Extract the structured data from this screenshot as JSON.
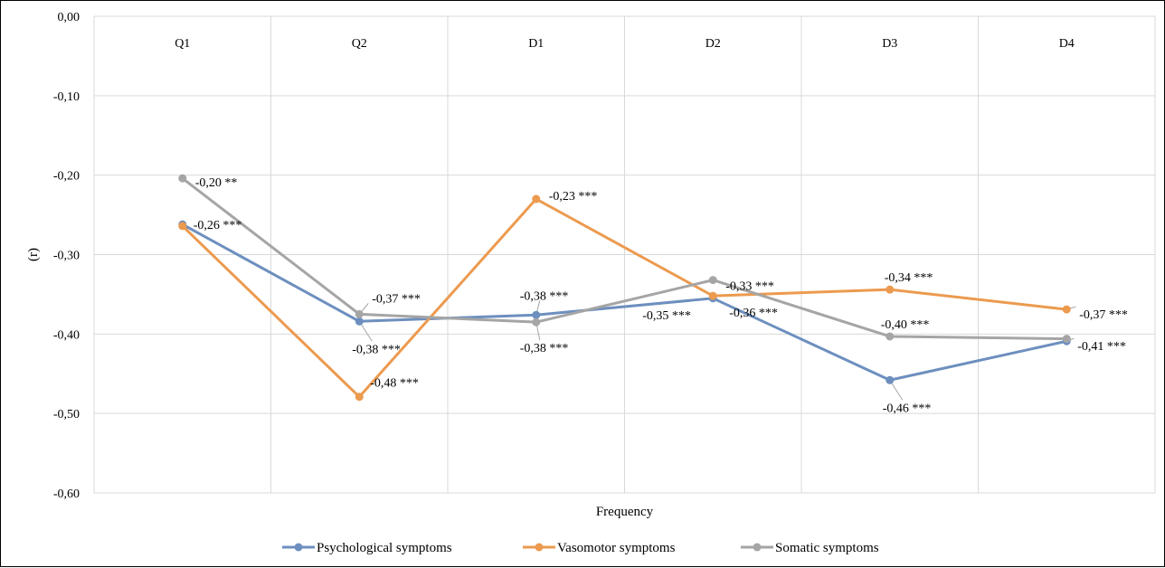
{
  "chart_data": {
    "type": "line",
    "title": "",
    "xlabel": "Frequency",
    "ylabel": "(r)",
    "categories": [
      "Q1",
      "Q2",
      "D1",
      "D2",
      "D3",
      "D4"
    ],
    "ylim": [
      -0.6,
      0.0
    ],
    "yticks": [
      0.0,
      -0.1,
      -0.2,
      -0.3,
      -0.4,
      -0.5,
      -0.6
    ],
    "ytick_labels": [
      "0,00",
      "-0,10",
      "-0,20",
      "-0,30",
      "-0,40",
      "-0,50",
      "-0,60"
    ],
    "grid": true,
    "legend": "bottom",
    "series": [
      {
        "name": "Psychological symptoms",
        "color": "#6d8fbf",
        "values": [
          -0.262,
          -0.384,
          -0.376,
          -0.355,
          -0.458,
          -0.409
        ],
        "labels": [
          "-0,26 ***",
          "-0,38 ***",
          "-0,38 ***",
          "-0,36 ***",
          "-0,46 ***",
          "-0,41 ***"
        ]
      },
      {
        "name": "Vasomotor symptoms",
        "color": "#ec9a4f",
        "values": [
          -0.264,
          -0.479,
          -0.23,
          -0.352,
          -0.344,
          -0.369
        ],
        "labels": [
          "",
          "-0,48 ***",
          "-0,23 ***",
          "-0,35 ***",
          "-0,34 ***",
          "-0,37 ***"
        ]
      },
      {
        "name": "Somatic symptoms",
        "color": "#a5a5a5",
        "values": [
          -0.204,
          -0.375,
          -0.385,
          -0.332,
          -0.403,
          -0.406
        ],
        "labels": [
          "-0,20 **",
          "-0,37 ***",
          "-0,38 ***",
          "-0,33 ***",
          "-0,40 ***",
          ""
        ]
      }
    ]
  }
}
